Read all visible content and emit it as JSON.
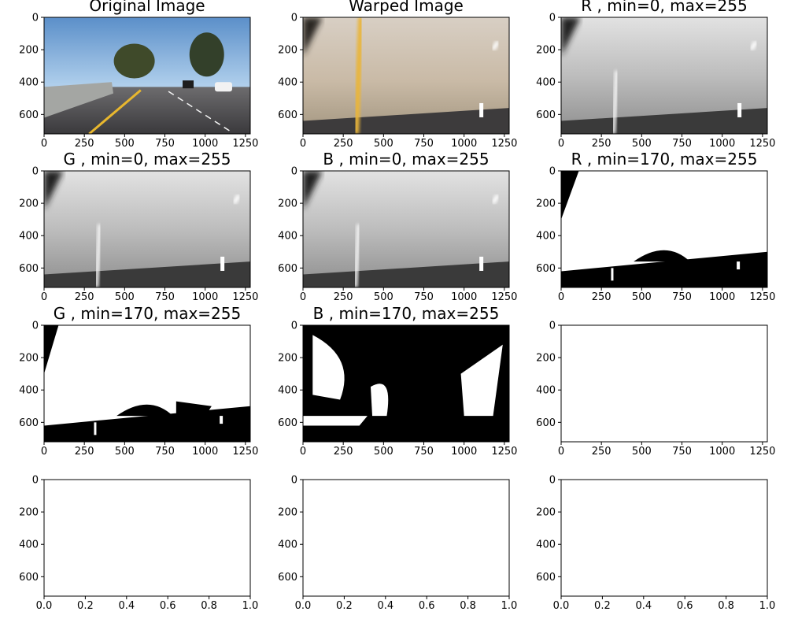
{
  "figure": {
    "background": "#ffffff"
  },
  "chart_data": [
    {
      "type": "image",
      "panel": "original",
      "title": "Original Image",
      "xticks": [
        0,
        250,
        500,
        750,
        1000,
        1250
      ],
      "yticks": [
        0,
        200,
        400,
        600
      ],
      "xlim": [
        0,
        1280
      ],
      "ylim": [
        720,
        0
      ],
      "colormap": "rgb"
    },
    {
      "type": "image",
      "panel": "warped",
      "title": "Warped Image",
      "xticks": [
        0,
        250,
        500,
        750,
        1000,
        1250
      ],
      "yticks": [
        0,
        200,
        400,
        600
      ],
      "xlim": [
        0,
        1280
      ],
      "ylim": [
        720,
        0
      ],
      "colormap": "rgb"
    },
    {
      "type": "image",
      "panel": "channel-gray",
      "title": "R , min=0, max=255",
      "xticks": [
        0,
        250,
        500,
        750,
        1000,
        1250
      ],
      "yticks": [
        0,
        200,
        400,
        600
      ],
      "xlim": [
        0,
        1280
      ],
      "ylim": [
        720,
        0
      ],
      "colormap": "gray"
    },
    {
      "type": "image",
      "panel": "channel-gray",
      "title": "G , min=0, max=255",
      "xticks": [
        0,
        250,
        500,
        750,
        1000,
        1250
      ],
      "yticks": [
        0,
        200,
        400,
        600
      ],
      "xlim": [
        0,
        1280
      ],
      "ylim": [
        720,
        0
      ],
      "colormap": "gray"
    },
    {
      "type": "image",
      "panel": "channel-gray",
      "title": "B , min=0, max=255",
      "xticks": [
        0,
        250,
        500,
        750,
        1000,
        1250
      ],
      "yticks": [
        0,
        200,
        400,
        600
      ],
      "xlim": [
        0,
        1280
      ],
      "ylim": [
        720,
        0
      ],
      "colormap": "gray"
    },
    {
      "type": "image",
      "panel": "binary-r",
      "title": "R , min=170, max=255",
      "xticks": [
        0,
        250,
        500,
        750,
        1000,
        1250
      ],
      "yticks": [
        0,
        200,
        400,
        600
      ],
      "xlim": [
        0,
        1280
      ],
      "ylim": [
        720,
        0
      ],
      "colormap": "binary"
    },
    {
      "type": "image",
      "panel": "binary-g",
      "title": "G , min=170, max=255",
      "xticks": [
        0,
        250,
        500,
        750,
        1000,
        1250
      ],
      "yticks": [
        0,
        200,
        400,
        600
      ],
      "xlim": [
        0,
        1280
      ],
      "ylim": [
        720,
        0
      ],
      "colormap": "binary"
    },
    {
      "type": "image",
      "panel": "binary-b",
      "title": "B , min=170, max=255",
      "xticks": [
        0,
        250,
        500,
        750,
        1000,
        1250
      ],
      "yticks": [
        0,
        200,
        400,
        600
      ],
      "xlim": [
        0,
        1280
      ],
      "ylim": [
        720,
        0
      ],
      "colormap": "binary"
    },
    {
      "type": "image",
      "panel": "blank",
      "title": "",
      "xticks": [
        0,
        250,
        500,
        750,
        1000,
        1250
      ],
      "yticks": [
        0,
        200,
        400,
        600
      ],
      "xlim": [
        0,
        1280
      ],
      "ylim": [
        720,
        0
      ]
    },
    {
      "type": "empty",
      "panel": "empty",
      "title": "",
      "xticks": [
        0.0,
        0.2,
        0.4,
        0.6,
        0.8,
        1.0
      ],
      "yticks": [
        0,
        200,
        400,
        600
      ],
      "xlim": [
        0,
        1
      ],
      "ylim": [
        720,
        0
      ]
    },
    {
      "type": "empty",
      "panel": "empty",
      "title": "",
      "xticks": [
        0.0,
        0.2,
        0.4,
        0.6,
        0.8,
        1.0
      ],
      "yticks": [
        0,
        200,
        400,
        600
      ],
      "xlim": [
        0,
        1
      ],
      "ylim": [
        720,
        0
      ]
    },
    {
      "type": "empty",
      "panel": "empty",
      "title": "",
      "xticks": [
        0.0,
        0.2,
        0.4,
        0.6,
        0.8,
        1.0
      ],
      "yticks": [
        0,
        200,
        400,
        600
      ],
      "xlim": [
        0,
        1
      ],
      "ylim": [
        720,
        0
      ]
    }
  ]
}
